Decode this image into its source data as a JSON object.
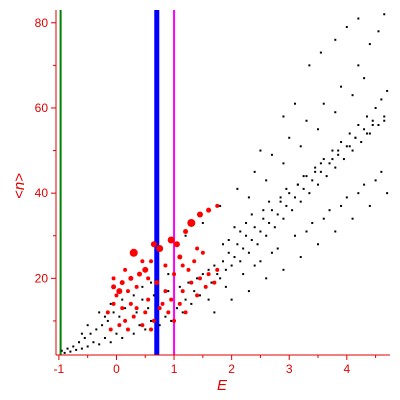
{
  "chart_data": {
    "type": "scatter",
    "title": "",
    "xlabel": "E",
    "ylabel": "<n>",
    "xlim": [
      -1.05,
      4.75
    ],
    "ylim": [
      2,
      83
    ],
    "xticks": [
      -1,
      0,
      1,
      2,
      3,
      4
    ],
    "yticks": [
      20,
      40,
      60,
      80
    ],
    "grid": false,
    "legend": "none",
    "colors": {
      "axis": "#e00000",
      "black_series": "#000000",
      "red_series": "#ff0000",
      "line_green": "#008000",
      "line_blue": "#0000ff",
      "line_magenta": "#ff00ff"
    },
    "vertical_lines": [
      {
        "x": -0.97,
        "color": "#008000",
        "style": "thin"
      },
      {
        "x": 0.7,
        "color": "#0000ff",
        "style": "thick"
      },
      {
        "x": 1.0,
        "color": "#ff00ff",
        "style": "medium"
      }
    ],
    "series": [
      {
        "color": "#000000",
        "marker": "dot",
        "points": [
          [
            -0.95,
            3
          ],
          [
            -0.9,
            2.5
          ],
          [
            -0.85,
            3.5
          ],
          [
            -0.8,
            2.8
          ],
          [
            -0.75,
            4
          ],
          [
            -0.7,
            3.2
          ],
          [
            -0.65,
            5
          ],
          [
            -0.6,
            3.5
          ],
          [
            -0.55,
            6
          ],
          [
            -0.5,
            4
          ],
          [
            -0.45,
            7
          ],
          [
            -0.4,
            5
          ],
          [
            -0.35,
            8
          ],
          [
            -0.3,
            4.5
          ],
          [
            -0.25,
            9
          ],
          [
            -0.2,
            6
          ],
          [
            -0.15,
            10
          ],
          [
            -0.1,
            5
          ],
          [
            -0.05,
            12
          ],
          [
            0.0,
            7
          ],
          [
            0.05,
            11
          ],
          [
            0.1,
            6
          ],
          [
            0.15,
            13
          ],
          [
            0.2,
            8
          ],
          [
            0.25,
            14
          ],
          [
            0.3,
            7
          ],
          [
            0.35,
            12
          ],
          [
            0.4,
            9
          ],
          [
            0.45,
            15
          ],
          [
            0.5,
            8
          ],
          [
            0.55,
            13
          ],
          [
            0.6,
            10
          ],
          [
            0.65,
            16
          ],
          [
            0.75,
            9
          ],
          [
            0.8,
            14
          ],
          [
            0.85,
            11
          ],
          [
            0.9,
            17
          ],
          [
            0.95,
            10
          ],
          [
            1.05,
            13
          ],
          [
            1.1,
            18
          ],
          [
            1.15,
            12
          ],
          [
            1.2,
            15
          ],
          [
            1.25,
            19
          ],
          [
            1.3,
            14
          ],
          [
            1.35,
            17
          ],
          [
            1.4,
            20
          ],
          [
            1.45,
            16
          ],
          [
            1.5,
            21
          ],
          [
            1.55,
            18
          ],
          [
            1.6,
            22
          ],
          [
            1.65,
            19
          ],
          [
            1.7,
            23
          ],
          [
            1.75,
            21
          ],
          [
            1.8,
            20
          ],
          [
            1.85,
            24
          ],
          [
            1.9,
            22
          ],
          [
            1.95,
            26
          ],
          [
            2.0,
            23
          ],
          [
            2.05,
            25
          ],
          [
            2.1,
            28
          ],
          [
            2.15,
            24
          ],
          [
            2.2,
            27
          ],
          [
            2.25,
            30
          ],
          [
            2.3,
            26
          ],
          [
            2.35,
            29
          ],
          [
            2.4,
            32
          ],
          [
            2.45,
            28
          ],
          [
            2.5,
            31
          ],
          [
            2.55,
            34
          ],
          [
            2.6,
            30
          ],
          [
            2.65,
            33
          ],
          [
            2.7,
            36
          ],
          [
            2.75,
            32
          ],
          [
            2.8,
            35
          ],
          [
            2.85,
            38
          ],
          [
            2.9,
            34
          ],
          [
            2.95,
            37
          ],
          [
            3.0,
            40
          ],
          [
            3.05,
            36
          ],
          [
            3.1,
            39
          ],
          [
            3.15,
            42
          ],
          [
            3.2,
            38
          ],
          [
            3.25,
            41
          ],
          [
            3.3,
            44
          ],
          [
            3.35,
            40
          ],
          [
            3.4,
            43
          ],
          [
            3.45,
            46
          ],
          [
            3.5,
            42
          ],
          [
            3.55,
            45
          ],
          [
            3.6,
            48
          ],
          [
            3.65,
            44
          ],
          [
            3.7,
            47
          ],
          [
            3.75,
            50
          ],
          [
            3.8,
            46
          ],
          [
            3.85,
            49
          ],
          [
            3.9,
            52
          ],
          [
            3.95,
            48
          ],
          [
            4.0,
            51
          ],
          [
            4.05,
            54
          ],
          [
            4.1,
            50
          ],
          [
            4.15,
            53
          ],
          [
            4.2,
            56
          ],
          [
            4.25,
            52
          ],
          [
            4.3,
            55
          ],
          [
            4.35,
            58
          ],
          [
            4.4,
            54
          ],
          [
            4.45,
            57
          ],
          [
            4.5,
            60
          ],
          [
            4.55,
            56
          ],
          [
            4.6,
            62
          ],
          [
            4.65,
            58
          ],
          [
            4.7,
            64
          ],
          [
            1.2,
            30
          ],
          [
            1.5,
            33
          ],
          [
            1.8,
            37
          ],
          [
            2.1,
            41
          ],
          [
            2.4,
            45
          ],
          [
            2.7,
            49
          ],
          [
            3.0,
            53
          ],
          [
            3.3,
            57
          ],
          [
            3.6,
            61
          ],
          [
            3.9,
            65
          ],
          [
            4.2,
            70
          ],
          [
            4.4,
            75
          ],
          [
            4.55,
            78
          ],
          [
            4.65,
            82
          ],
          [
            2.3,
            39
          ],
          [
            2.6,
            43
          ],
          [
            2.9,
            47
          ],
          [
            3.2,
            51
          ],
          [
            3.5,
            55
          ],
          [
            3.8,
            59
          ],
          [
            4.1,
            63
          ],
          [
            4.3,
            67
          ],
          [
            3.35,
            70
          ],
          [
            3.55,
            73
          ],
          [
            3.8,
            76
          ],
          [
            4.0,
            79
          ],
          [
            4.2,
            81
          ],
          [
            2.9,
            58
          ],
          [
            3.1,
            61
          ],
          [
            2.5,
            50
          ],
          [
            1.6,
            15
          ],
          [
            1.9,
            18
          ],
          [
            2.2,
            21
          ],
          [
            2.5,
            24
          ],
          [
            2.8,
            27
          ],
          [
            3.1,
            30
          ],
          [
            3.4,
            33
          ],
          [
            3.7,
            36
          ],
          [
            4.0,
            39
          ],
          [
            4.3,
            42
          ],
          [
            4.6,
            45
          ],
          [
            1.7,
            12
          ],
          [
            2.0,
            15
          ],
          [
            2.3,
            17
          ],
          [
            2.6,
            20
          ],
          [
            2.9,
            22
          ],
          [
            3.2,
            25
          ],
          [
            3.5,
            28
          ],
          [
            3.8,
            31
          ],
          [
            4.1,
            34
          ],
          [
            4.4,
            37
          ],
          [
            4.7,
            40
          ],
          [
            2.05,
            32
          ],
          [
            2.35,
            35
          ],
          [
            2.65,
            38
          ],
          [
            2.95,
            41
          ],
          [
            3.25,
            44
          ],
          [
            3.55,
            47
          ],
          [
            3.85,
            50
          ],
          [
            4.15,
            53
          ],
          [
            4.45,
            56
          ],
          [
            1.95,
            29
          ],
          [
            2.25,
            33
          ],
          [
            2.55,
            36
          ],
          [
            2.85,
            39
          ],
          [
            3.15,
            42
          ],
          [
            3.45,
            45
          ],
          [
            3.75,
            48
          ],
          [
            4.05,
            51
          ],
          [
            4.35,
            54
          ],
          [
            4.65,
            57
          ],
          [
            3.6,
            34
          ],
          [
            3.9,
            37
          ],
          [
            4.2,
            40
          ],
          [
            4.5,
            43
          ],
          [
            3.3,
            31
          ],
          [
            2.7,
            26
          ],
          [
            2.4,
            23
          ],
          [
            1.85,
            28
          ],
          [
            2.15,
            31
          ],
          [
            -0.3,
            12
          ],
          [
            -0.1,
            14
          ],
          [
            0.1,
            15
          ],
          [
            0.3,
            16
          ],
          [
            -0.5,
            9
          ],
          [
            -0.2,
            11
          ],
          [
            0.45,
            18
          ],
          [
            0.6,
            19
          ],
          [
            0.9,
            21
          ],
          [
            -0.6,
            7
          ]
        ]
      },
      {
        "color": "#ff0000",
        "marker": "filled-circle",
        "points": [
          [
            0.3,
            26,
            7
          ],
          [
            0.5,
            22,
            5
          ],
          [
            0.25,
            20,
            4
          ],
          [
            0.1,
            19,
            4
          ],
          [
            0.2,
            17,
            3
          ],
          [
            0.0,
            16,
            3
          ],
          [
            0.05,
            17,
            5
          ],
          [
            -0.05,
            18,
            4
          ],
          [
            0.4,
            21,
            4
          ],
          [
            0.65,
            28,
            5
          ],
          [
            0.75,
            27,
            6
          ],
          [
            0.95,
            29,
            6
          ],
          [
            1.05,
            28,
            5
          ],
          [
            1.2,
            31,
            4
          ],
          [
            1.3,
            33,
            7
          ],
          [
            1.45,
            35,
            5
          ],
          [
            1.6,
            36,
            4
          ],
          [
            1.75,
            37,
            3
          ],
          [
            1.1,
            25,
            4
          ],
          [
            1.15,
            23,
            3
          ],
          [
            0.85,
            23,
            3
          ],
          [
            1.4,
            27,
            3
          ],
          [
            1.5,
            26,
            3
          ],
          [
            1.35,
            24,
            3
          ],
          [
            0.6,
            24,
            3
          ],
          [
            0.45,
            24,
            3
          ],
          [
            0.15,
            22,
            3
          ],
          [
            -0.05,
            20,
            3
          ],
          [
            0.55,
            20,
            3
          ],
          [
            0.35,
            18,
            3
          ],
          [
            0.7,
            19,
            4
          ],
          [
            0.85,
            17,
            3
          ],
          [
            1.0,
            21,
            3
          ],
          [
            1.25,
            22,
            3
          ],
          [
            0.8,
            14,
            3
          ],
          [
            0.95,
            15,
            3
          ],
          [
            1.15,
            17,
            3
          ],
          [
            1.3,
            19,
            3
          ],
          [
            1.45,
            20,
            3
          ],
          [
            1.6,
            21,
            3
          ],
          [
            1.75,
            22,
            3
          ],
          [
            0.5,
            12,
            3
          ],
          [
            0.3,
            11,
            3
          ],
          [
            0.15,
            10,
            3
          ],
          [
            0.05,
            9,
            3
          ],
          [
            -0.1,
            8,
            3
          ],
          [
            0.65,
            10,
            3
          ],
          [
            0.45,
            9,
            3
          ],
          [
            0.2,
            8,
            3
          ],
          [
            0.35,
            13,
            3
          ],
          [
            0.55,
            15,
            3
          ],
          [
            0.75,
            13,
            3
          ],
          [
            0.9,
            12,
            3
          ],
          [
            1.1,
            14,
            3
          ],
          [
            1.2,
            12,
            3
          ],
          [
            0.6,
            8,
            3
          ],
          [
            1.0,
            10,
            3
          ],
          [
            1.4,
            16,
            3
          ],
          [
            1.55,
            18,
            3
          ],
          [
            1.7,
            19,
            3
          ],
          [
            0.25,
            14,
            3
          ],
          [
            0.1,
            13,
            3
          ],
          [
            -0.05,
            14,
            3
          ],
          [
            -0.15,
            12,
            3
          ]
        ]
      }
    ]
  }
}
